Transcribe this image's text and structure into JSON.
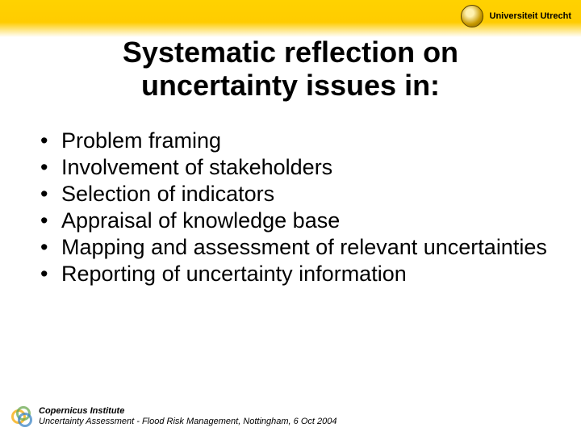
{
  "header": {
    "university": "Universiteit Utrecht"
  },
  "title": {
    "line1": "Systematic reflection on",
    "line2": "uncertainty issues in:"
  },
  "bullets": [
    "Problem framing",
    "Involvement of stakeholders",
    "Selection of indicators",
    "Appraisal of knowledge base",
    "Mapping and assessment of relevant uncertainties",
    "Reporting of uncertainty information"
  ],
  "footer": {
    "institute": "Copernicus Institute",
    "subtitle": "Uncertainty Assessment - Flood Risk Management, Nottingham, 6 Oct 2004"
  },
  "colors": {
    "band_top": "#ffd200",
    "band_bottom": "#ffffff",
    "text": "#000000"
  }
}
